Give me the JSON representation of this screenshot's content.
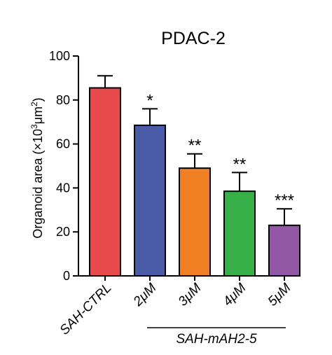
{
  "chart_data": {
    "type": "bar",
    "title": "PDAC-2",
    "ylabel": "Organoid area (×10³μm²)",
    "ylabel_parts": {
      "before": "Organoid area (×10",
      "exp1": "3",
      "mid": "μm",
      "exp2": "2",
      "after": ")"
    },
    "categories": [
      "SAH-CTRL",
      "2μM",
      "3μM",
      "4μM",
      "5μM"
    ],
    "values": [
      85.5,
      68.5,
      49,
      38.5,
      23
    ],
    "errors": [
      5.5,
      7.5,
      6.5,
      8.5,
      7.5
    ],
    "significance": [
      "",
      "*",
      "**",
      "**",
      "***"
    ],
    "colors": [
      "#e8494b",
      "#4a5ba8",
      "#f07e22",
      "#38b04a",
      "#9258a6"
    ],
    "ylim": [
      0,
      100
    ],
    "yticks": [
      0,
      20,
      40,
      60,
      80,
      100
    ],
    "group_label": "SAH-mAH2-5",
    "grid": false
  }
}
